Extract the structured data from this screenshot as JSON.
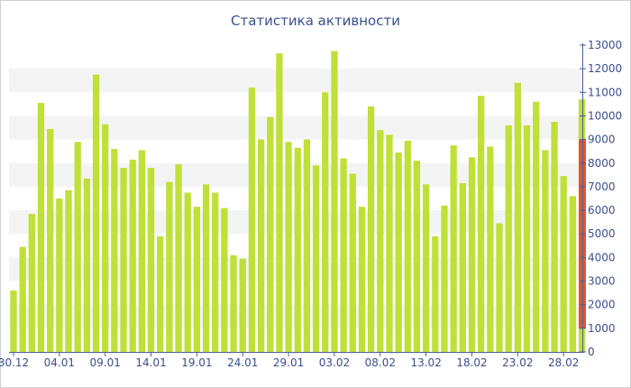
{
  "chart_data": {
    "type": "bar",
    "title": "Статистика активности",
    "xlabel": "",
    "ylabel": "",
    "ylim": [
      0,
      13000
    ],
    "y_ticks": [
      0,
      1000,
      2000,
      3000,
      4000,
      5000,
      6000,
      7000,
      8000,
      9000,
      10000,
      11000,
      12000,
      13000
    ],
    "y_axis_position": "right",
    "grid": "alternating horizontal bands",
    "bar_color": "#bfe039",
    "highlight_color": "#e8542d",
    "highlight_range": [
      1000,
      9000
    ],
    "x_tick_labels": [
      {
        "index": 0,
        "label": "30.12"
      },
      {
        "index": 5,
        "label": "04.01"
      },
      {
        "index": 10,
        "label": "09.01"
      },
      {
        "index": 15,
        "label": "14.01"
      },
      {
        "index": 20,
        "label": "19.01"
      },
      {
        "index": 25,
        "label": "24.01"
      },
      {
        "index": 30,
        "label": "29.01"
      },
      {
        "index": 35,
        "label": "03.02"
      },
      {
        "index": 40,
        "label": "08.02"
      },
      {
        "index": 45,
        "label": "13.02"
      },
      {
        "index": 50,
        "label": "18.02"
      },
      {
        "index": 55,
        "label": "23.02"
      },
      {
        "index": 60,
        "label": "28.02"
      }
    ],
    "values": [
      2600,
      4450,
      5850,
      10550,
      9450,
      6500,
      6850,
      8900,
      7350,
      11750,
      9650,
      8600,
      7800,
      8150,
      8550,
      7800,
      4900,
      7200,
      7950,
      6750,
      6150,
      7100,
      6750,
      6100,
      4100,
      3950,
      11200,
      9000,
      9950,
      12650,
      8900,
      8650,
      9000,
      7900,
      11000,
      12750,
      8200,
      7550,
      6150,
      10400,
      9400,
      9200,
      8450,
      8950,
      8100,
      7100,
      4900,
      6200,
      8750,
      7150,
      8250,
      10850,
      8700,
      5450,
      9600,
      11400,
      9600,
      10600,
      8550,
      9750,
      7450,
      6600,
      10700
    ]
  }
}
